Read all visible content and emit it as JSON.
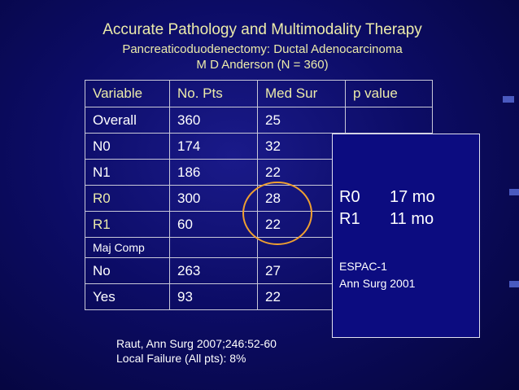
{
  "header": {
    "title": "Accurate Pathology and Multimodality Therapy",
    "subtitle": [
      "Pancreaticoduodenectomy:  Ductal Adenocarcinoma",
      "M D Anderson (N = 360)"
    ]
  },
  "table": {
    "columns": [
      "Variable",
      "No. Pts",
      "Med Sur",
      "p value"
    ],
    "rows": [
      [
        "Overall",
        "360",
        "25"
      ],
      [
        "N0",
        "174",
        "32"
      ],
      [
        "N1",
        "186",
        "22"
      ],
      [
        "R0",
        "300",
        "28"
      ],
      [
        "R1",
        "60",
        "22"
      ],
      [
        "Maj Comp"
      ],
      [
        "No",
        "263",
        "27"
      ],
      [
        "Yes",
        "93",
        "22"
      ]
    ]
  },
  "box": {
    "rows": [
      [
        "R0",
        "17 mo"
      ],
      [
        "R1",
        "11 mo"
      ]
    ],
    "reference": [
      "ESPAC-1",
      "Ann Surg 2001"
    ]
  },
  "footer": [
    "Raut, Ann Surg 2007;246:52-60",
    "Local Failure (All pts): 8%"
  ]
}
